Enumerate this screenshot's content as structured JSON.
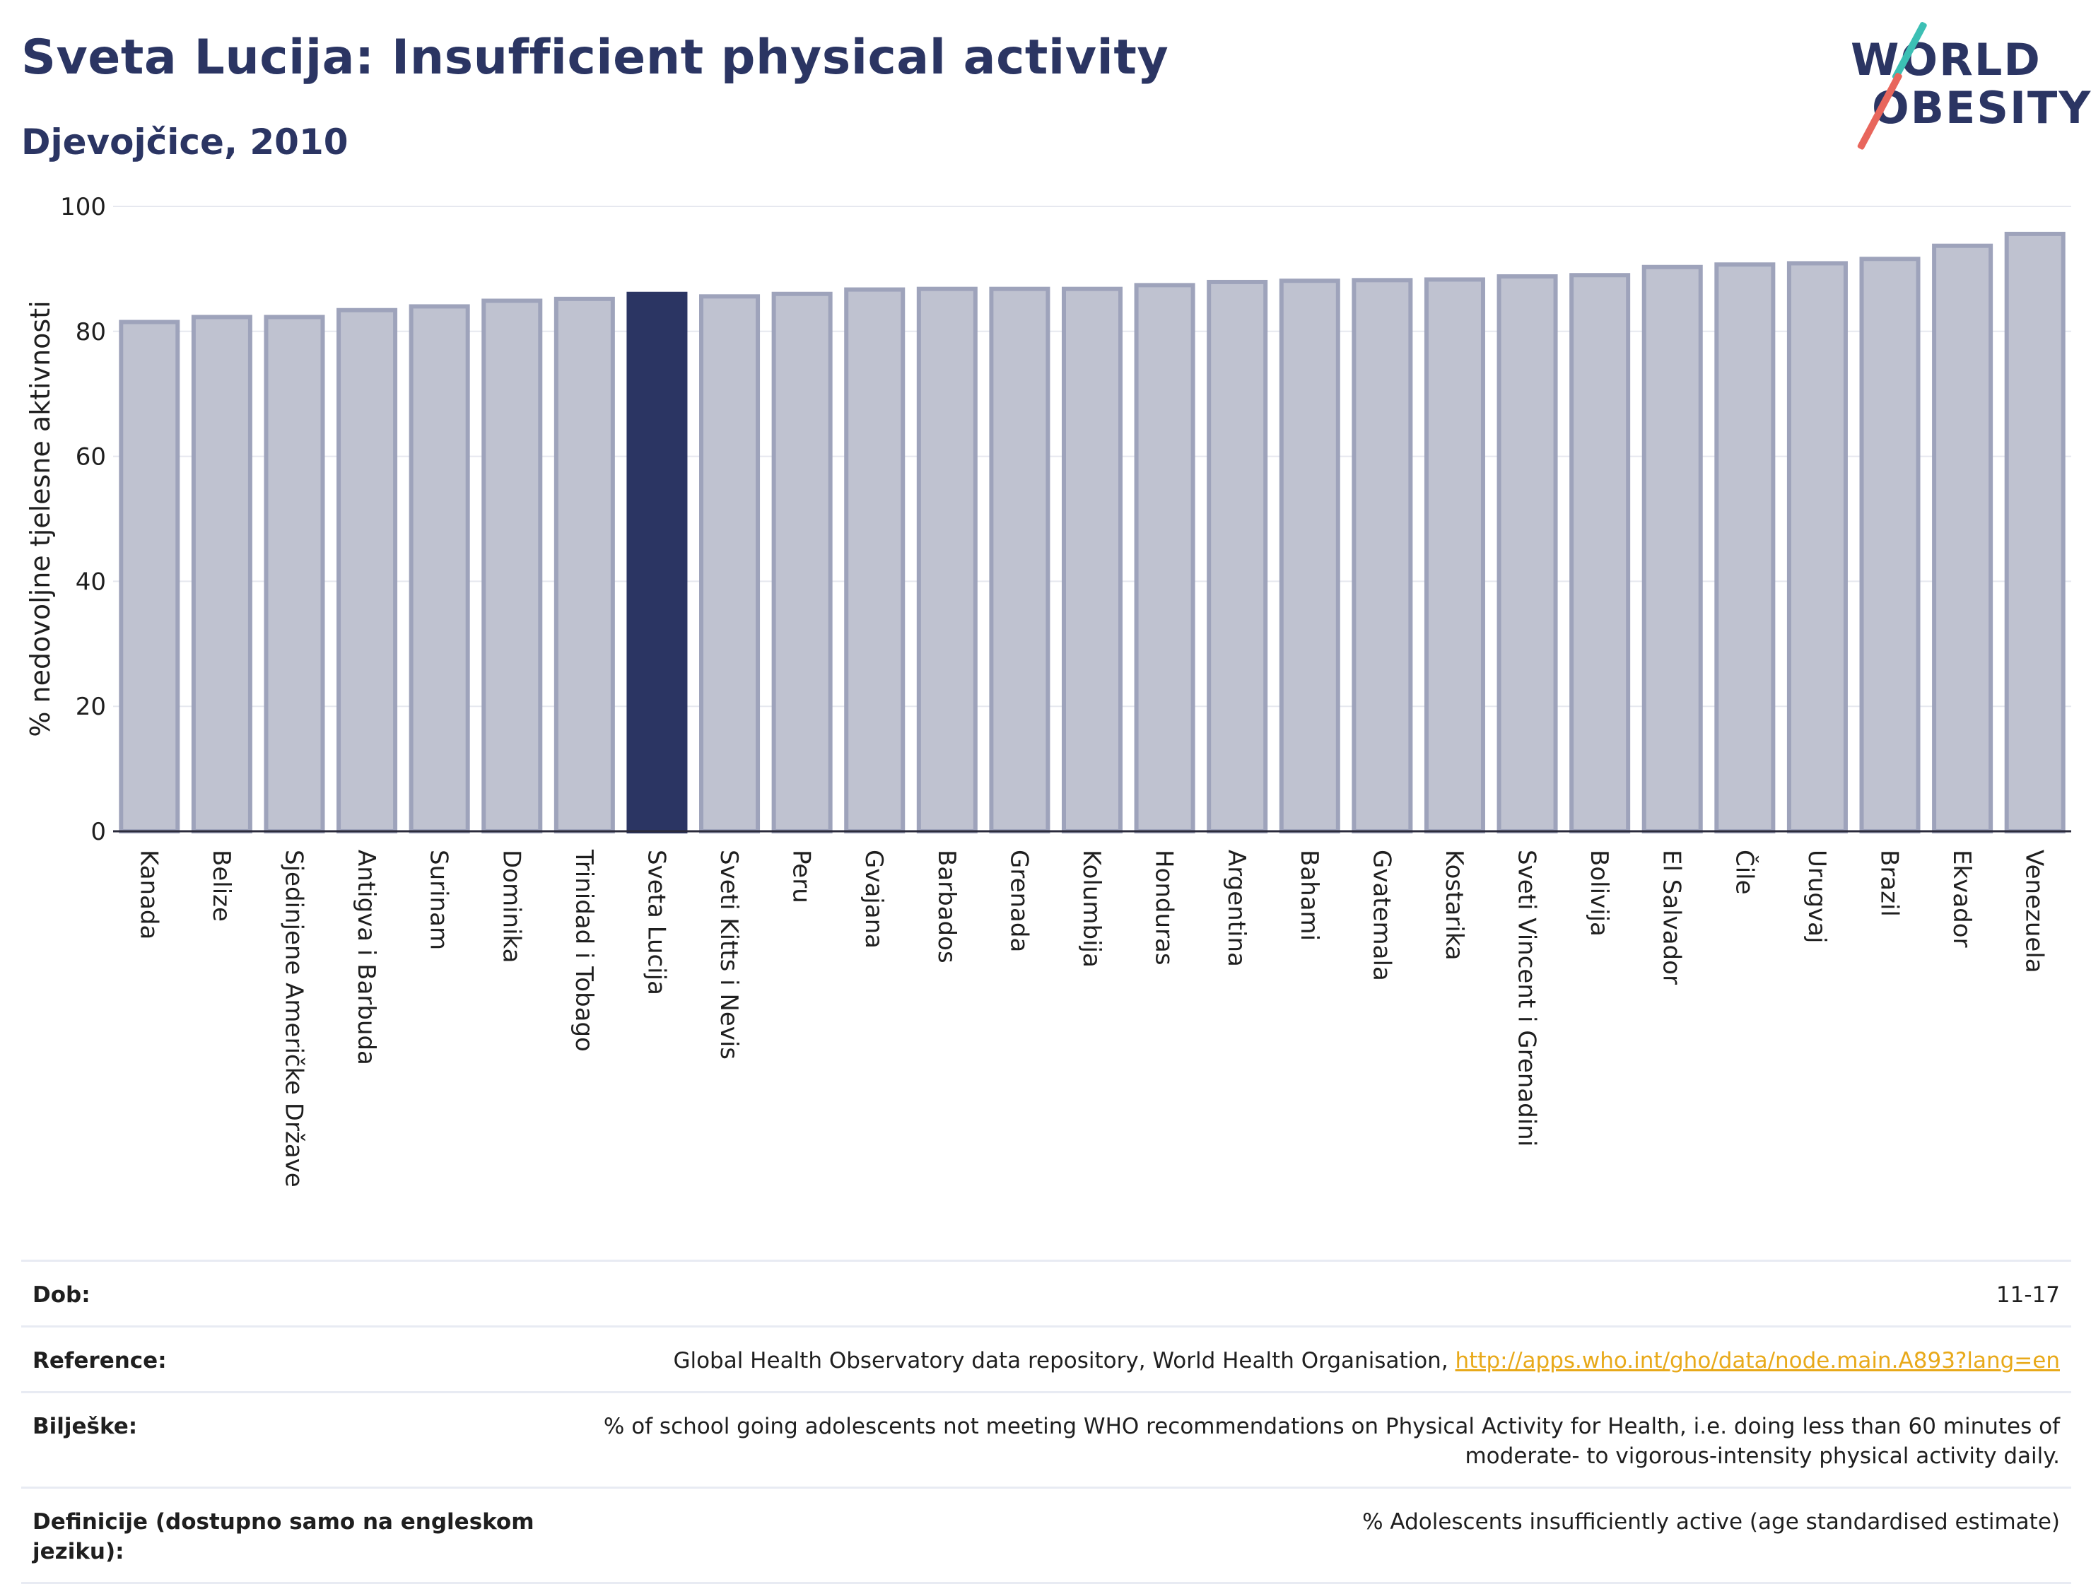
{
  "header": {
    "title": "Sveta Lucija: Insufficient physical activity",
    "subtitle": "Djevojčice, 2010"
  },
  "logo": {
    "line1": "WORLD",
    "line2": "OBESITY"
  },
  "colors": {
    "highlight": "#2b3563",
    "bar": "#bfc2d0",
    "bar_border": "#9ea3bb",
    "accent": "#e8a91a"
  },
  "chart_data": {
    "type": "bar",
    "title": "Sveta Lucija: Insufficient physical activity",
    "subtitle": "Djevojčice, 2010",
    "xlabel": "",
    "ylabel": "% nedovoljne tjelesne aktivnosti",
    "ylim": [
      0,
      100
    ],
    "yticks": [
      0,
      20,
      40,
      60,
      80,
      100
    ],
    "highlight": "Sveta Lucija",
    "grid": true,
    "categories": [
      "Kanada",
      "Belize",
      "Sjedinjene Američke Države",
      "Antigva i Barbuda",
      "Surinam",
      "Dominika",
      "Trinidad i Tobago",
      "Sveta Lucija",
      "Sveti Kitts i Nevis",
      "Peru",
      "Gvajana",
      "Barbados",
      "Grenada",
      "Kolumbija",
      "Honduras",
      "Argentina",
      "Bahami",
      "Gvatemala",
      "Kostarika",
      "Sveti Vincent i Grenadini",
      "Bolivija",
      "El Salvador",
      "Čile",
      "Urugvaj",
      "Brazil",
      "Ekvador",
      "Venezuela"
    ],
    "values": [
      81.5,
      82.3,
      82.3,
      83.4,
      84.0,
      84.9,
      85.2,
      86.0,
      85.6,
      86.0,
      86.7,
      86.8,
      86.8,
      86.8,
      87.4,
      87.9,
      88.1,
      88.2,
      88.3,
      88.8,
      89.0,
      90.3,
      90.7,
      90.9,
      91.6,
      93.7,
      95.6
    ]
  },
  "info": {
    "dob_label": "Dob:",
    "dob_value": "11-17",
    "ref_label": "Reference:",
    "ref_text": "Global Health Observatory data repository, World Health Organisation,",
    "ref_link": "http://apps.who.int/gho/data/node.main.A893?lang=en",
    "notes_label": "Bilješke:",
    "notes_value": "% of school going adolescents not meeting WHO recommendations on Physical Activity for Health, i.e. doing less than 60 minutes of moderate- to vigorous-intensity physical activity daily.",
    "def_label": "Definicije (dostupno samo na engleskom jeziku):",
    "def_value": "% Adolescents insufficiently active (age standardised estimate)"
  }
}
